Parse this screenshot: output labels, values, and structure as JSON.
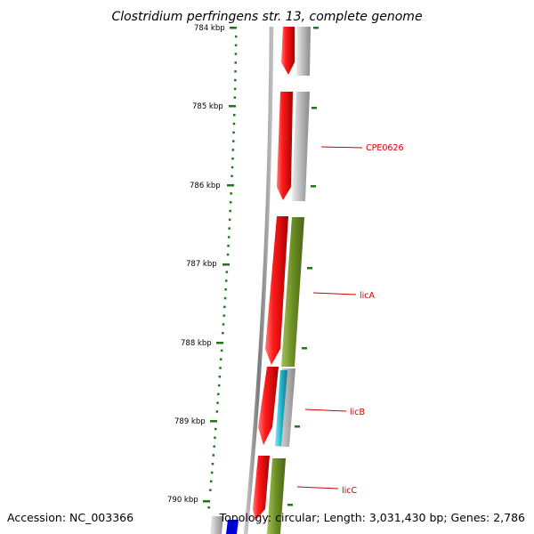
{
  "header": {
    "title": "Clostridium perfringens str. 13, complete genome"
  },
  "footer": {
    "accession": "Accession: NC_003366",
    "summary": "Topology: circular; Length: 3,031,430 bp; Genes: 2,786"
  },
  "scale": {
    "unit": "kbp",
    "tick_labels": [
      "784 kbp",
      "785 kbp",
      "786 kbp",
      "787 kbp",
      "788 kbp",
      "789 kbp",
      "790 kbp"
    ]
  },
  "genes": [
    {
      "label": "CPE0626",
      "color": "#e00000"
    },
    {
      "label": "licA",
      "color": "#e00000"
    },
    {
      "label": "licB",
      "color": "#e00000"
    },
    {
      "label": "licC",
      "color": "#e00000"
    }
  ],
  "colors": {
    "forward_feature": "#e00000",
    "reverse_feature_gray": "#b8b8b8",
    "reverse_feature_olive": "#6b8e23",
    "teal_feature": "#20b2c8",
    "blue_feature": "#0000dd",
    "backbone": "#808080",
    "ticks": "#1a7a1a",
    "label_line": "#cc0000"
  }
}
